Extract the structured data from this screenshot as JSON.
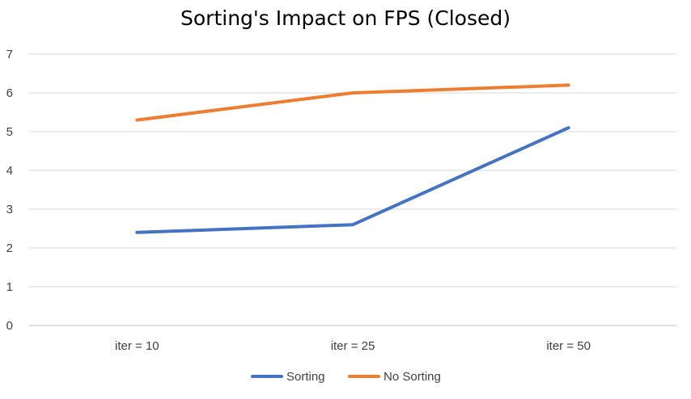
{
  "chart_data": {
    "type": "line",
    "title": "Sorting's Impact on FPS (Closed)",
    "xlabel": "",
    "ylabel": "",
    "categories": [
      "iter = 10",
      "iter = 25",
      "iter = 50"
    ],
    "ylim": [
      0,
      7
    ],
    "yticks": [
      0,
      1,
      2,
      3,
      4,
      5,
      6,
      7
    ],
    "grid": true,
    "legend_position": "bottom",
    "series": [
      {
        "name": "Sorting",
        "values": [
          2.4,
          2.6,
          5.1
        ],
        "color": "#4472C4"
      },
      {
        "name": "No Sorting",
        "values": [
          5.3,
          6.0,
          6.2
        ],
        "color": "#ED7D31"
      }
    ]
  }
}
